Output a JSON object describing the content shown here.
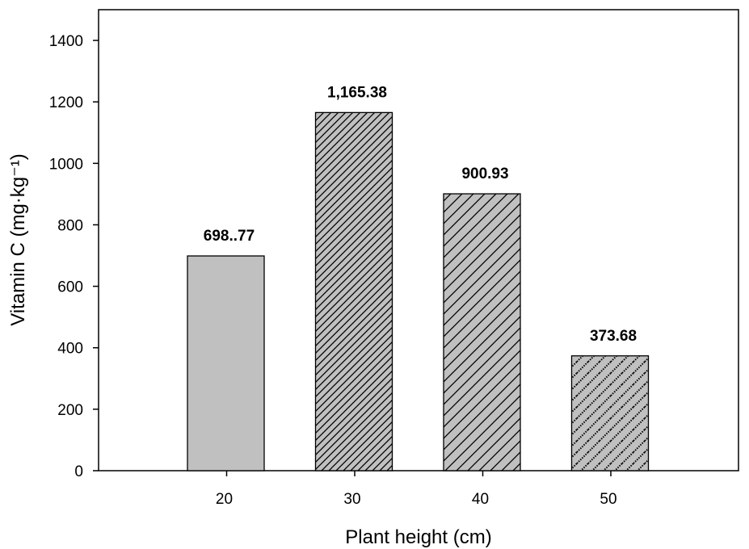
{
  "chart_data": {
    "type": "bar",
    "categories": [
      "20",
      "30",
      "40",
      "50"
    ],
    "values": [
      698.77,
      1165.38,
      900.93,
      373.68
    ],
    "data_labels": [
      "698..77",
      "1,165.38",
      "900.93",
      "373.68"
    ],
    "xlabel": "Plant height (cm)",
    "ylabel": "Vitamin C (mg·kg⁻¹)",
    "ylim": [
      0,
      1500
    ],
    "yticks": [
      0,
      200,
      400,
      600,
      800,
      1000,
      1200,
      1400
    ],
    "grid": false,
    "bar_fill": "#c0c0c0",
    "bar_patterns": [
      "solid",
      "dense-diagonal",
      "diagonal",
      "dotted-diagonal"
    ]
  }
}
